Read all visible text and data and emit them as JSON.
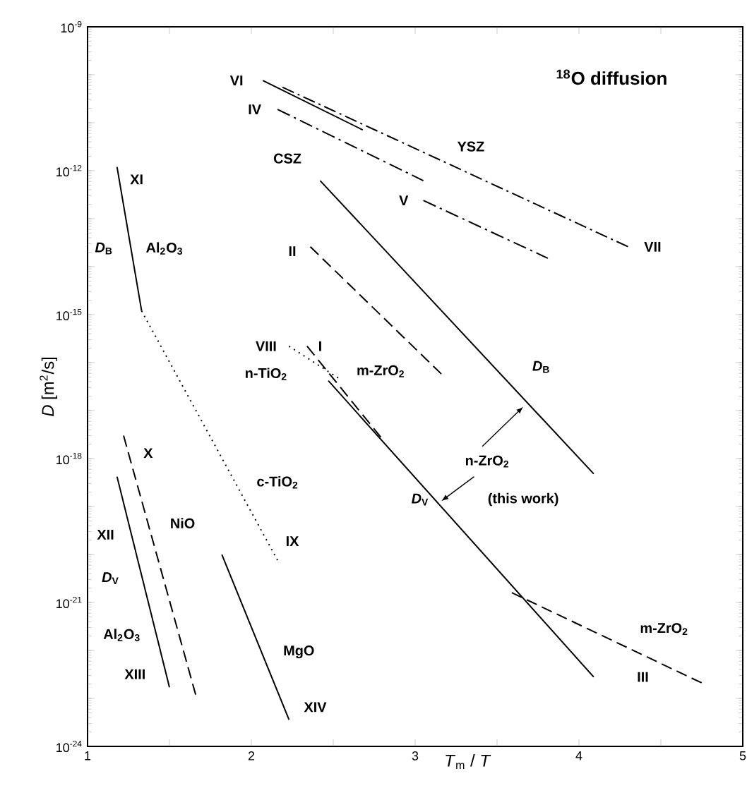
{
  "chart_data": {
    "type": "line",
    "title": "$^{18}$O diffusion",
    "xlabel": "*T*$_{m}$ / *T*",
    "ylabel": "*D* [m$^{2}$/s]",
    "log": "y",
    "xlim": [
      1,
      5
    ],
    "ylim": [
      1e-24,
      1e-09
    ],
    "xticks": [
      1,
      {
        "value": 1.5,
        "label": null
      },
      2,
      {
        "value": 2.5,
        "label": null
      },
      3,
      {
        "value": 3.5,
        "label": null
      },
      4,
      {
        "value": 4.5,
        "label": null
      },
      5
    ],
    "yticks": [
      {
        "value": 1e-24,
        "label": "10$^{-24}$"
      },
      {
        "value": 1e-23,
        "label": null
      },
      {
        "value": 1e-22,
        "label": null
      },
      {
        "value": 1e-21,
        "label": "10$^{-21}$"
      },
      {
        "value": 1e-20,
        "label": null
      },
      {
        "value": 1e-19,
        "label": null
      },
      {
        "value": 1e-18,
        "label": "10$^{-18}$"
      },
      {
        "value": 1e-17,
        "label": null
      },
      {
        "value": 1e-16,
        "label": null
      },
      {
        "value": 1e-15,
        "label": "10$^{-15}$"
      },
      {
        "value": 1e-14,
        "label": null
      },
      {
        "value": 1e-13,
        "label": null
      },
      {
        "value": 1e-12,
        "label": "10$^{-12}$"
      },
      {
        "value": 1e-11,
        "label": null
      },
      {
        "value": 1e-10,
        "label": null
      },
      {
        "value": 1e-09,
        "label": "10$^{-9}$"
      }
    ],
    "series": [
      {
        "color": "#000000",
        "line_style": "dashdotted",
        "x": [
          2.19,
          4.3
        ],
        "values": [
          5.5e-11,
          2.6e-14
        ]
      },
      {
        "color": "#000000",
        "line_style": "solid",
        "x": [
          2.07,
          2.68
        ],
        "values": [
          7.6e-11,
          7.1e-12
        ]
      },
      {
        "color": "#000000",
        "line_style": "dashdotted",
        "x": [
          2.16,
          3.05
        ],
        "values": [
          1.9e-11,
          6.2e-13
        ]
      },
      {
        "color": "#000000",
        "line_style": "dashdotted",
        "x": [
          3.05,
          3.81
        ],
        "values": [
          2.4e-13,
          1.5e-14
        ]
      },
      {
        "color": "#000000",
        "line_style": "solid",
        "x": [
          2.42,
          4.09
        ],
        "values": [
          6.2e-13,
          4.8e-19
        ]
      },
      {
        "color": "#000000",
        "line_style": "dashed",
        "x": [
          2.36,
          3.16
        ],
        "values": [
          2.6e-14,
          5.8e-17
        ]
      },
      {
        "color": "#000000",
        "line_style": "solid",
        "x": [
          2.47,
          4.09
        ],
        "values": [
          4.2e-17,
          2.8e-23
        ]
      },
      {
        "color": "#000000",
        "line_style": "dashed",
        "x": [
          3.59,
          4.75
        ],
        "values": [
          1.6e-21,
          2.1e-23
        ]
      },
      {
        "color": "#000000",
        "line_style": "dotted",
        "x": [
          2.23,
          2.53
        ],
        "values": [
          2.2e-16,
          4.8e-17
        ]
      },
      {
        "color": "#000000",
        "line_style": "dashed",
        "x": [
          2.34,
          2.79
        ],
        "values": [
          2.2e-16,
          2.8e-18
        ]
      },
      {
        "color": "#000000",
        "line_style": "solid",
        "x": [
          1.18,
          1.33
        ],
        "values": [
          1.2e-12,
          1.2e-15
        ]
      },
      {
        "color": "#000000",
        "line_style": "dotted",
        "x": [
          1.33,
          2.16
        ],
        "values": [
          1.2e-15,
          7.6e-21
        ]
      },
      {
        "color": "#000000",
        "line_style": "dashed",
        "x": [
          1.22,
          1.66
        ],
        "values": [
          3e-18,
          1.2e-23
        ]
      },
      {
        "color": "#000000",
        "line_style": "solid",
        "x": [
          1.18,
          1.5
        ],
        "values": [
          4.2e-19,
          1.7e-23
        ]
      },
      {
        "color": "#000000",
        "line_style": "solid",
        "x": [
          1.82,
          2.23
        ],
        "values": [
          1e-20,
          3.6e-24
        ]
      }
    ],
    "annotations": [
      "VI",
      "IV",
      "CSZ",
      "YSZ",
      "V",
      "VII",
      "II",
      "XI",
      "*D*$_{B}$",
      "Al$_{2}$O$_{3}$",
      "VIII",
      "I",
      "n-TiO$_{2}$",
      "m-ZrO$_{2}$",
      "*D*$_{B}$",
      "n-ZrO$_{2}$",
      "(this work)",
      "*D*$_{V}$",
      "X",
      "c-TiO$_{2}$",
      "NiO",
      "IX",
      "XII",
      "*D*$_{V}$",
      "Al$_{2}$O$_{3}$",
      "XIII",
      "MgO",
      "XIV",
      "m-ZrO$_{2}$",
      "III"
    ]
  }
}
